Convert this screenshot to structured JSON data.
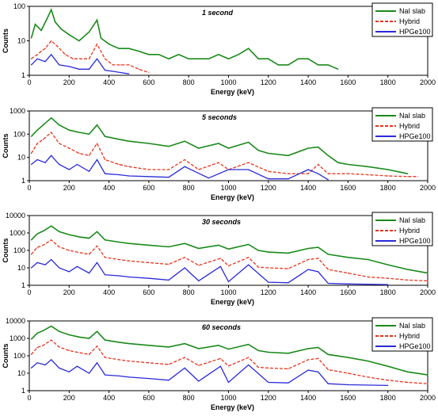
{
  "legend_entries": [
    "NaI slab",
    "Hybrid",
    "HPGe100"
  ],
  "colors": {
    "nai": "#1a8a1a",
    "hybrid": "#e8341c",
    "hpge": "#2a2adc"
  },
  "chart_data": [
    {
      "type": "line",
      "title": "1 second",
      "xlabel": "Energy (keV)",
      "ylabel": "Counts",
      "xlim": [
        0,
        2000
      ],
      "ylim": [
        1,
        100
      ],
      "log_y": true,
      "x_ticks": [
        "0",
        "200",
        "400",
        "600",
        "800",
        "1000",
        "1200",
        "1400",
        "1600",
        "1800",
        "2000"
      ],
      "y_ticks": [
        "1",
        "10",
        "100"
      ],
      "legend_position": "top-right",
      "grid": false,
      "series": [
        {
          "name": "NaI slab",
          "style": "solid",
          "x": [
            10,
            30,
            60,
            90,
            110,
            130,
            160,
            200,
            250,
            300,
            340,
            360,
            400,
            450,
            500,
            550,
            600,
            650,
            700,
            750,
            800,
            850,
            900,
            950,
            1000,
            1050,
            1100,
            1150,
            1200,
            1250,
            1300,
            1350,
            1400,
            1450,
            1500,
            1550
          ],
          "y": [
            12,
            30,
            20,
            45,
            80,
            35,
            22,
            15,
            10,
            18,
            40,
            12,
            8,
            6,
            6,
            5,
            4,
            4,
            3,
            4,
            3,
            3,
            3,
            4,
            3,
            4,
            6,
            3,
            3,
            2,
            2,
            3,
            3,
            2,
            2,
            1.5
          ]
        },
        {
          "name": "Hybrid",
          "style": "dashed",
          "x": [
            10,
            40,
            60,
            80,
            110,
            140,
            180,
            220,
            260,
            300,
            340,
            380,
            420,
            460,
            500,
            550,
            600
          ],
          "y": [
            3,
            4,
            5,
            6,
            10,
            7,
            4,
            3,
            3,
            3,
            8,
            3,
            2,
            2,
            2,
            1.5,
            1.2
          ]
        },
        {
          "name": "HPGe100",
          "style": "solid",
          "x": [
            10,
            40,
            80,
            110,
            150,
            200,
            250,
            300,
            340,
            380,
            420,
            460,
            500
          ],
          "y": [
            2,
            3,
            2.5,
            4,
            2,
            1.8,
            1.5,
            1.5,
            3,
            1.4,
            1.3,
            1.2,
            1.1
          ]
        }
      ]
    },
    {
      "type": "line",
      "title": "5 seconds",
      "xlabel": "Energy (keV)",
      "ylabel": "Counts",
      "xlim": [
        0,
        2000
      ],
      "ylim": [
        1,
        1000
      ],
      "log_y": true,
      "x_ticks": [
        "0",
        "200",
        "400",
        "600",
        "800",
        "1000",
        "1200",
        "1400",
        "1600",
        "1800",
        "2000"
      ],
      "y_ticks": [
        "1",
        "10",
        "100",
        "1000"
      ],
      "legend_position": "top-right",
      "grid": false,
      "series": [
        {
          "name": "NaI slab",
          "style": "solid",
          "x": [
            10,
            40,
            70,
            110,
            150,
            200,
            250,
            300,
            340,
            380,
            450,
            500,
            600,
            700,
            780,
            850,
            950,
            1000,
            1100,
            1150,
            1200,
            1300,
            1400,
            1450,
            1500,
            1550,
            1600,
            1700,
            1800,
            1900
          ],
          "y": [
            80,
            150,
            250,
            500,
            250,
            150,
            120,
            100,
            250,
            80,
            60,
            50,
            40,
            30,
            50,
            25,
            40,
            25,
            45,
            20,
            15,
            12,
            25,
            28,
            12,
            6,
            5,
            4,
            3,
            2
          ]
        },
        {
          "name": "Hybrid",
          "style": "dashed",
          "x": [
            10,
            40,
            70,
            110,
            150,
            200,
            250,
            300,
            340,
            380,
            450,
            500,
            600,
            700,
            780,
            850,
            950,
            1000,
            1100,
            1200,
            1300,
            1400,
            1450,
            1500,
            1600,
            1700,
            1800,
            1900,
            1950
          ],
          "y": [
            15,
            40,
            60,
            120,
            40,
            25,
            15,
            12,
            40,
            8,
            5,
            4,
            3,
            3,
            8,
            3,
            6,
            3,
            6,
            2.5,
            2,
            2,
            5,
            2,
            2,
            1.8,
            1.6,
            1.5,
            1.5
          ]
        },
        {
          "name": "HPGe100",
          "style": "solid",
          "x": [
            10,
            40,
            80,
            110,
            150,
            200,
            240,
            300,
            340,
            380,
            450,
            500,
            600,
            700,
            780,
            900,
            1000,
            1100,
            1200,
            1300,
            1400,
            1450,
            1500
          ],
          "y": [
            5,
            8,
            6,
            12,
            5,
            3,
            5,
            2.5,
            8,
            2,
            1.8,
            1.6,
            1.5,
            1.4,
            4,
            1.3,
            3,
            3,
            1.2,
            1.2,
            3,
            2,
            1.1
          ]
        }
      ]
    },
    {
      "type": "line",
      "title": "30 seconds",
      "xlabel": "Energy (keV)",
      "ylabel": "Counts",
      "xlim": [
        0,
        2000
      ],
      "ylim": [
        1,
        10000
      ],
      "log_y": true,
      "x_ticks": [
        "0",
        "200",
        "400",
        "600",
        "800",
        "1000",
        "1200",
        "1400",
        "1600",
        "1800",
        "2000"
      ],
      "y_ticks": [
        "1",
        "10",
        "100",
        "1000",
        "10000"
      ],
      "legend_position": "top-right",
      "grid": false,
      "series": [
        {
          "name": "NaI slab",
          "style": "solid",
          "x": [
            10,
            40,
            70,
            110,
            150,
            200,
            250,
            300,
            340,
            380,
            450,
            500,
            600,
            700,
            780,
            850,
            950,
            1000,
            1100,
            1150,
            1200,
            1300,
            1400,
            1450,
            1500,
            1600,
            1700,
            1800,
            1900,
            2000
          ],
          "y": [
            400,
            900,
            1300,
            2500,
            1200,
            800,
            600,
            500,
            1200,
            400,
            300,
            250,
            200,
            160,
            250,
            130,
            200,
            120,
            220,
            100,
            80,
            70,
            130,
            150,
            60,
            40,
            30,
            15,
            8,
            5
          ]
        },
        {
          "name": "Hybrid",
          "style": "dashed",
          "x": [
            10,
            40,
            70,
            110,
            150,
            200,
            240,
            300,
            340,
            380,
            450,
            500,
            600,
            700,
            780,
            850,
            960,
            1000,
            1100,
            1150,
            1200,
            1300,
            1400,
            1450,
            1500,
            1600,
            1700,
            1800,
            1900,
            2000
          ],
          "y": [
            60,
            150,
            200,
            400,
            160,
            100,
            80,
            60,
            180,
            40,
            30,
            25,
            20,
            16,
            40,
            14,
            35,
            13,
            40,
            11,
            10,
            9,
            30,
            35,
            8,
            5,
            3,
            2.5,
            2,
            1.8
          ]
        },
        {
          "name": "HPGe100",
          "style": "solid",
          "x": [
            10,
            40,
            80,
            110,
            150,
            200,
            240,
            300,
            340,
            380,
            450,
            500,
            600,
            700,
            780,
            850,
            960,
            1000,
            1100,
            1200,
            1300,
            1400,
            1450,
            1500,
            1600,
            1800
          ],
          "y": [
            10,
            20,
            15,
            30,
            10,
            6,
            12,
            5,
            20,
            4,
            3.5,
            3,
            2.5,
            2,
            10,
            1.8,
            12,
            1.6,
            15,
            1.5,
            1.4,
            8,
            6,
            1.3,
            1.2,
            1.1
          ]
        }
      ]
    },
    {
      "type": "line",
      "title": "60 seconds",
      "xlabel": "Energy (keV)",
      "ylabel": "Counts",
      "xlim": [
        0,
        2000
      ],
      "ylim": [
        1,
        10000
      ],
      "log_y": true,
      "x_ticks": [
        "0",
        "200",
        "400",
        "600",
        "800",
        "1000",
        "1200",
        "1400",
        "1600",
        "1800",
        "2000"
      ],
      "y_ticks": [
        "1",
        "10",
        "100",
        "1000",
        "10000"
      ],
      "legend_position": "top-right",
      "grid": false,
      "series": [
        {
          "name": "NaI slab",
          "style": "solid",
          "x": [
            10,
            40,
            70,
            110,
            150,
            200,
            250,
            300,
            340,
            380,
            450,
            500,
            600,
            700,
            780,
            850,
            950,
            1000,
            1100,
            1150,
            1200,
            1300,
            1400,
            1450,
            1500,
            1600,
            1700,
            1800,
            1900,
            2000
          ],
          "y": [
            900,
            2000,
            2800,
            5000,
            2500,
            1600,
            1200,
            1000,
            2500,
            800,
            600,
            500,
            400,
            320,
            500,
            260,
            400,
            240,
            450,
            200,
            160,
            140,
            260,
            300,
            120,
            80,
            50,
            25,
            12,
            8
          ]
        },
        {
          "name": "Hybrid",
          "style": "dashed",
          "x": [
            10,
            40,
            70,
            110,
            150,
            200,
            240,
            300,
            340,
            380,
            450,
            500,
            600,
            700,
            780,
            850,
            960,
            1000,
            1100,
            1150,
            1200,
            1300,
            1400,
            1450,
            1500,
            1600,
            1700,
            1800,
            1900,
            2000
          ],
          "y": [
            120,
            300,
            400,
            800,
            320,
            200,
            160,
            120,
            360,
            80,
            60,
            50,
            40,
            32,
            80,
            28,
            70,
            26,
            80,
            22,
            20,
            18,
            60,
            70,
            16,
            10,
            6,
            4,
            3,
            2.5
          ]
        },
        {
          "name": "HPGe100",
          "style": "solid",
          "x": [
            10,
            40,
            80,
            110,
            150,
            200,
            240,
            300,
            340,
            380,
            450,
            500,
            600,
            700,
            780,
            850,
            960,
            1000,
            1100,
            1200,
            1300,
            1400,
            1450,
            1500,
            1600,
            1800
          ],
          "y": [
            20,
            40,
            30,
            60,
            20,
            12,
            25,
            10,
            40,
            8,
            7,
            6,
            5,
            4,
            20,
            3.5,
            25,
            3,
            30,
            3,
            2.8,
            15,
            12,
            2.5,
            2.2,
            2
          ]
        }
      ]
    }
  ]
}
